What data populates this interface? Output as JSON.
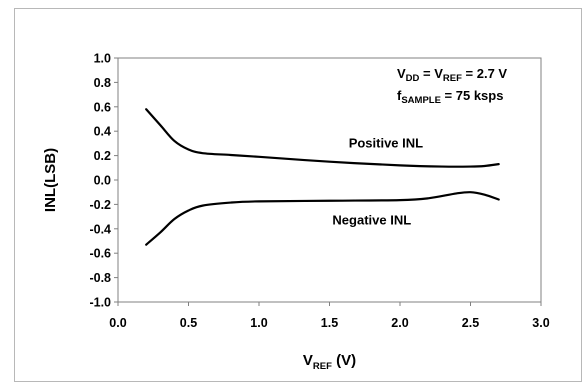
{
  "chart_data": {
    "type": "line",
    "xlabel": {
      "main": "V",
      "sub": "REF",
      "tail": " (V)"
    },
    "ylabel": "INL(LSB)",
    "xlim": [
      0.0,
      3.0
    ],
    "ylim": [
      -1.0,
      1.0
    ],
    "x_ticks": [
      "0.0",
      "0.5",
      "1.0",
      "1.5",
      "2.0",
      "2.5",
      "3.0"
    ],
    "y_ticks": [
      "1.0",
      "0.8",
      "0.6",
      "0.4",
      "0.2",
      "0.0",
      "-0.2",
      "-0.4",
      "-0.6",
      "-0.8",
      "-1.0"
    ],
    "grid": false,
    "conditions": {
      "line1": {
        "p1": "V",
        "s1": "DD",
        "p2": " = V",
        "s2": "REF",
        "p3": " = 2.7 V"
      },
      "line2": {
        "p1": "f",
        "s1": "SAMPLE",
        "p2": " = 75 ksps"
      }
    },
    "series": [
      {
        "name": "Positive INL",
        "x": [
          0.2,
          0.3,
          0.4,
          0.5,
          0.6,
          0.8,
          1.0,
          1.5,
          2.0,
          2.3,
          2.5,
          2.6,
          2.7
        ],
        "y": [
          0.58,
          0.45,
          0.32,
          0.25,
          0.22,
          0.205,
          0.19,
          0.15,
          0.12,
          0.11,
          0.11,
          0.115,
          0.13
        ]
      },
      {
        "name": "Negative INL",
        "x": [
          0.2,
          0.3,
          0.4,
          0.5,
          0.6,
          0.8,
          1.0,
          1.5,
          2.0,
          2.2,
          2.4,
          2.5,
          2.6,
          2.7
        ],
        "y": [
          -0.53,
          -0.43,
          -0.32,
          -0.25,
          -0.21,
          -0.185,
          -0.175,
          -0.17,
          -0.165,
          -0.15,
          -0.11,
          -0.1,
          -0.12,
          -0.16
        ]
      }
    ]
  }
}
